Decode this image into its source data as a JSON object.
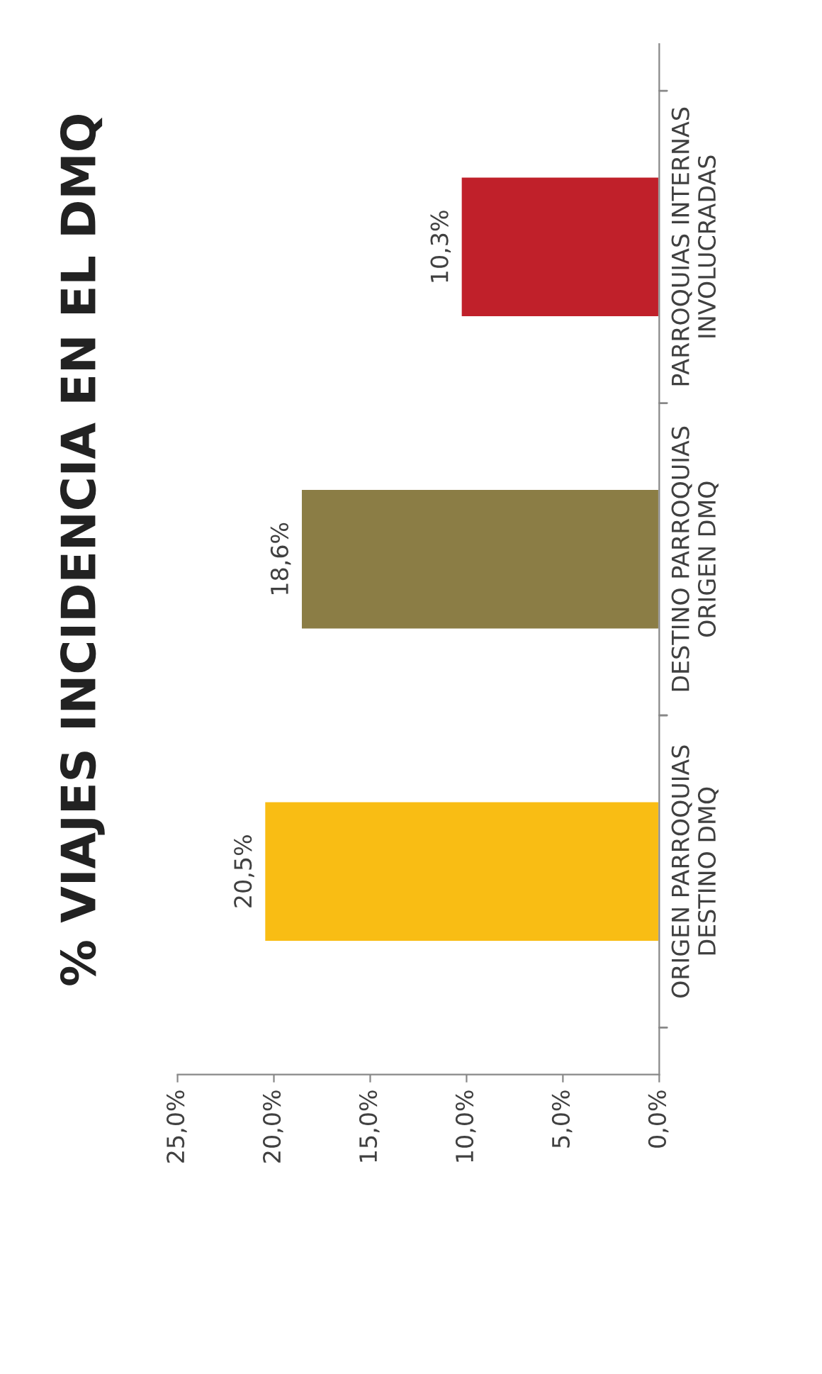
{
  "chart_data": {
    "type": "bar",
    "orientation": "horizontal",
    "title": "% VIAJES INCIDENCIA EN EL DMQ",
    "categories": [
      "PARROQUIAS INTERNAS\nINVOLUCRADAS",
      "DESTINO PARROQUIAS\nORIGEN DMQ",
      "ORIGEN PARROQUIAS\nDESTINO DMQ"
    ],
    "values": [
      10.3,
      18.6,
      20.5
    ],
    "colors": [
      "#c0202a",
      "#8b7d45",
      "#f9bd14"
    ],
    "value_labels": [
      "10,3%",
      "18,6%",
      "20,5%"
    ],
    "xlim": [
      25,
      0
    ],
    "xticks": [
      {
        "value": 25,
        "label": "25,0%"
      },
      {
        "value": 20,
        "label": "20,0%"
      },
      {
        "value": 15,
        "label": "15,0%"
      },
      {
        "value": 10,
        "label": "10,0%"
      },
      {
        "value": 5,
        "label": "5,0%"
      },
      {
        "value": 0,
        "label": "0,0%"
      }
    ],
    "grid": false
  }
}
